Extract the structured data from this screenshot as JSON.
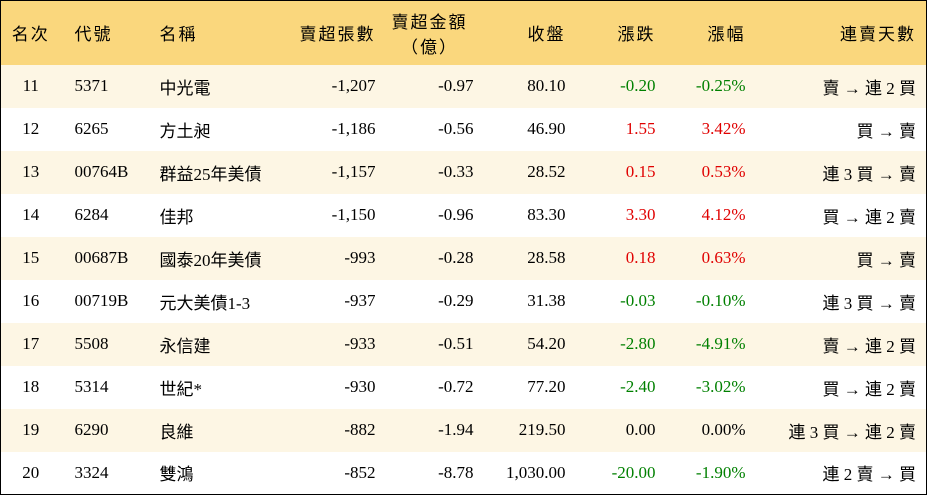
{
  "table": {
    "header": [
      "名次",
      "代號",
      "名稱",
      "賣超張數",
      [
        "賣超金額",
        "（億）"
      ],
      "收盤",
      "漲跌",
      "漲幅",
      "連賣天數"
    ],
    "rows": [
      [
        "11",
        "5371",
        "中光電",
        "-1,207",
        "-0.97",
        "80.10",
        "-0.20",
        "-0.25%",
        "賣 → 連 2 買"
      ],
      [
        "12",
        "6265",
        "方土昶",
        "-1,186",
        "-0.56",
        "46.90",
        "1.55",
        "3.42%",
        "買 → 賣"
      ],
      [
        "13",
        "00764B",
        "群益25年美債",
        "-1,157",
        "-0.33",
        "28.52",
        "0.15",
        "0.53%",
        "連 3 買 → 賣"
      ],
      [
        "14",
        "6284",
        "佳邦",
        "-1,150",
        "-0.96",
        "83.30",
        "3.30",
        "4.12%",
        "買 → 連 2 賣"
      ],
      [
        "15",
        "00687B",
        "國泰20年美債",
        "-993",
        "-0.28",
        "28.58",
        "0.18",
        "0.63%",
        "買 → 賣"
      ],
      [
        "16",
        "00719B",
        "元大美債1-3",
        "-937",
        "-0.29",
        "31.38",
        "-0.03",
        "-0.10%",
        "連 3 買 → 賣"
      ],
      [
        "17",
        "5508",
        "永信建",
        "-933",
        "-0.51",
        "54.20",
        "-2.80",
        "-4.91%",
        "賣 → 連 2 買"
      ],
      [
        "18",
        "5314",
        "世紀*",
        "-930",
        "-0.72",
        "77.20",
        "-2.40",
        "-3.02%",
        "買 → 連 2 賣"
      ],
      [
        "19",
        "6290",
        "良維",
        "-882",
        "-1.94",
        "219.50",
        "0.00",
        "0.00%",
        "連 3 買 → 連 2 賣"
      ],
      [
        "20",
        "3324",
        "雙鴻",
        "-852",
        "-8.78",
        "1,030.00",
        "-20.00",
        "-1.90%",
        "連 2 賣 → 買"
      ]
    ]
  }
}
